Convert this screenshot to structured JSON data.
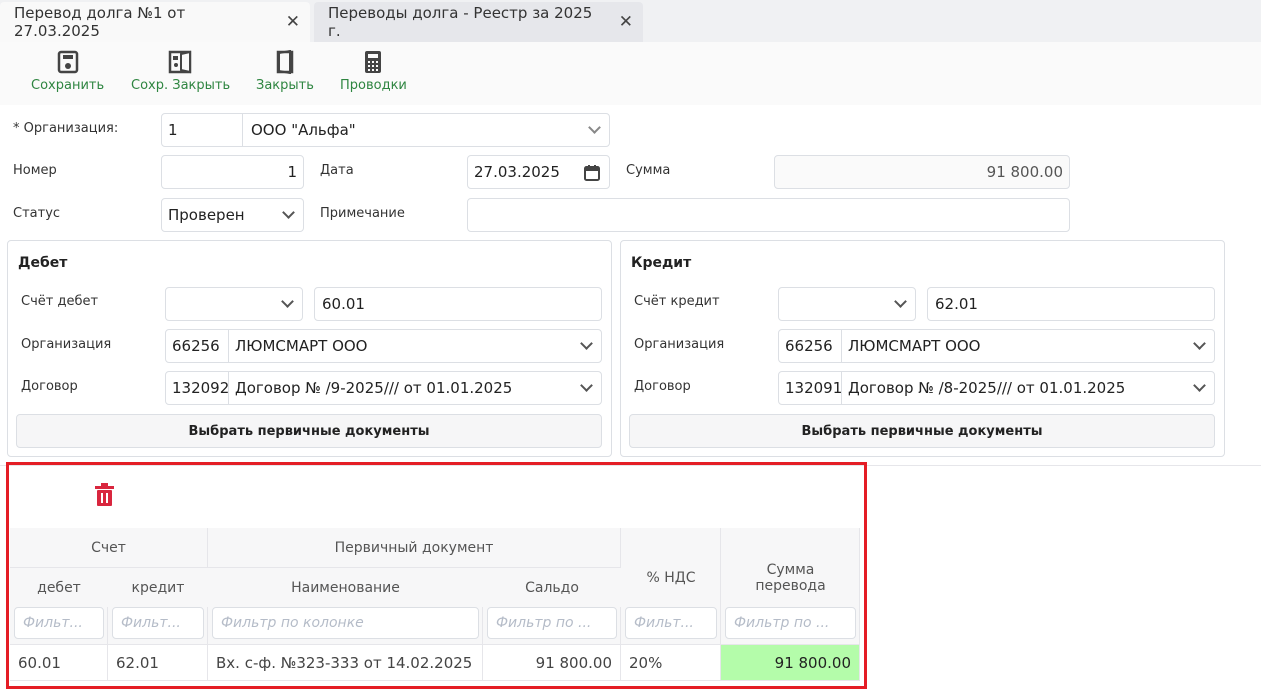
{
  "tabs": [
    {
      "label": "Перевод долга №1 от 27.03.2025",
      "active": true
    },
    {
      "label": "Переводы долга - Реестр за 2025 г.",
      "active": false
    }
  ],
  "toolbar": {
    "save": "Сохранить",
    "save_close": "Сохр. Закрыть",
    "close": "Закрыть",
    "postings": "Проводки"
  },
  "form": {
    "org_label": "* Организация:",
    "org_code": "1",
    "org_name": "ООО \"Альфа\"",
    "number_label": "Номер",
    "number": "1",
    "date_label": "Дата",
    "date": "27.03.2025",
    "sum_label": "Сумма",
    "sum": "91 800.00",
    "status_label": "Статус",
    "status": "Проверен",
    "note_label": "Примечание",
    "note": ""
  },
  "debit": {
    "title": "Дебет",
    "account_label": "Счёт дебет",
    "account": "60.01",
    "org_label": "Организация",
    "org_code": "66256",
    "org_name": "ЛЮМСМАРТ ООО",
    "contract_label": "Договор",
    "contract_code": "132092",
    "contract_name": "Договор № /9-2025/// от 01.01.2025",
    "select_btn": "Выбрать первичные документы"
  },
  "credit": {
    "title": "Кредит",
    "account_label": "Счёт кредит",
    "account": "62.01",
    "org_label": "Организация",
    "org_code": "66256",
    "org_name": "ЛЮМСМАРТ ООО",
    "contract_label": "Договор",
    "contract_code": "132091",
    "contract_name": "Договор № /8-2025/// от 01.01.2025",
    "select_btn": "Выбрать первичные документы"
  },
  "table": {
    "group_account": "Счет",
    "group_doc": "Первичный документ",
    "columns": [
      "дебет",
      "кредит",
      "Наименование",
      "Сальдо",
      "% НДС",
      "Сумма перевода"
    ],
    "filters": [
      "Фильт...",
      "Фильт...",
      "Фильтр по колонке",
      "Фильтр по ...",
      "Фильт...",
      "Фильтр по ..."
    ],
    "rows": [
      [
        "60.01",
        "62.01",
        "Вх. с-ф. №323-333 от 14.02.2025",
        "91 800.00",
        "20%",
        "91 800.00"
      ]
    ]
  },
  "colors": {
    "accent_green": "#2e8540",
    "highlight_cell": "#b4fcaa",
    "delete_red": "#d9263e",
    "annotation_red": "#e41d25"
  }
}
